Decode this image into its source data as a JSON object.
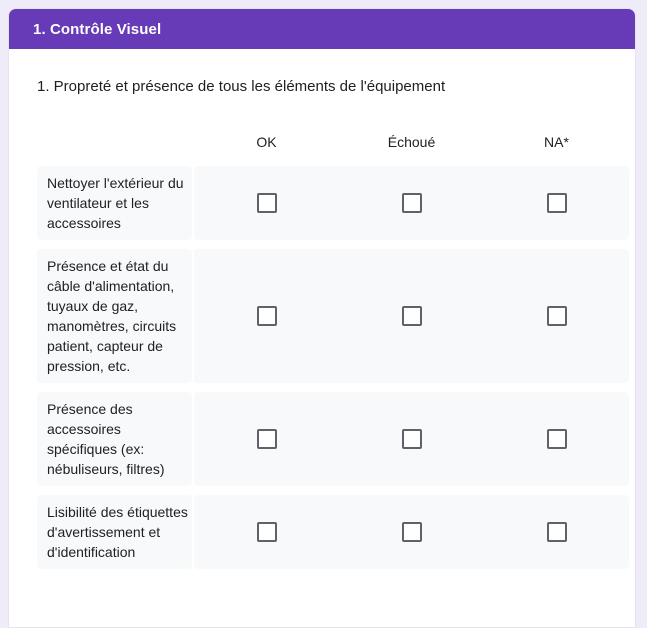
{
  "section": {
    "title": "1. Contrôle Visuel"
  },
  "question": {
    "title": "1. Propreté et présence de tous les éléments de l'équipement"
  },
  "grid": {
    "columns": [
      "OK",
      "Échoué",
      "NA*"
    ],
    "rows": [
      {
        "label": "Nettoyer l'extérieur du ventilateur et les accessoires",
        "checked": [
          false,
          false,
          false
        ]
      },
      {
        "label": "Présence et état du câble d'alimentation, tuyaux de gaz, manomètres, circuits patient, capteur de pression, etc.",
        "checked": [
          false,
          false,
          false
        ]
      },
      {
        "label": "Présence des accessoires spécifiques (ex: nébuliseurs, filtres)",
        "checked": [
          false,
          false,
          false
        ]
      },
      {
        "label": "Lisibilité des étiquettes d'avertissement et d'identification",
        "checked": [
          false,
          false,
          false
        ]
      }
    ]
  },
  "colors": {
    "section_header_bg": "#673ab7",
    "page_bg": "#f0ebf8",
    "row_bg": "#f8f9fa",
    "text": "#202124",
    "checkbox_border": "#5f6368",
    "header_text": "#ffffff"
  }
}
